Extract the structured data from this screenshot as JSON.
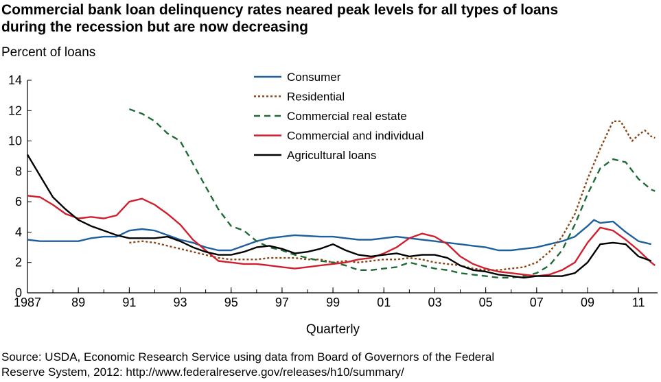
{
  "title": {
    "line1": "Commercial bank loan delinquency rates neared peak levels for all types of loans",
    "line2": "during the recession but are now decreasing"
  },
  "source": {
    "line1": "Source: USDA, Economic Research Service using data from Board of Governors of the Federal",
    "line2": "Reserve System, 2012:  http://www.federalreserve.gov/releases/h10/summary/"
  },
  "chart_data": {
    "type": "line",
    "title": "Commercial bank loan delinquency rates neared peak levels for all types of loans during the recession but are now decreasing",
    "xlabel": "Quarterly",
    "ylabel": "Percent of loans",
    "ylim": [
      0,
      14
    ],
    "xlim": [
      1987,
      2011.75
    ],
    "yticks": [
      0,
      2,
      4,
      6,
      8,
      10,
      12,
      14
    ],
    "xticks": [
      {
        "value": 1987,
        "label": "1987"
      },
      {
        "value": 1989,
        "label": "89"
      },
      {
        "value": 1991,
        "label": "91"
      },
      {
        "value": 1993,
        "label": "93"
      },
      {
        "value": 1995,
        "label": "95"
      },
      {
        "value": 1997,
        "label": "97"
      },
      {
        "value": 1999,
        "label": "99"
      },
      {
        "value": 2001,
        "label": "01"
      },
      {
        "value": 2003,
        "label": "03"
      },
      {
        "value": 2005,
        "label": "05"
      },
      {
        "value": 2007,
        "label": "07"
      },
      {
        "value": 2009,
        "label": "09"
      },
      {
        "value": 2011,
        "label": "11"
      }
    ],
    "grid": false,
    "legend_position": "top-center",
    "series": [
      {
        "name": "Consumer",
        "color": "#1f5f9c",
        "dash": "solid",
        "points": [
          [
            1987,
            3.5
          ],
          [
            1987.5,
            3.4
          ],
          [
            1988,
            3.4
          ],
          [
            1988.5,
            3.4
          ],
          [
            1989,
            3.4
          ],
          [
            1989.5,
            3.6
          ],
          [
            1990,
            3.7
          ],
          [
            1990.5,
            3.7
          ],
          [
            1991,
            4.1
          ],
          [
            1991.5,
            4.2
          ],
          [
            1992,
            4.1
          ],
          [
            1992.5,
            3.8
          ],
          [
            1993,
            3.5
          ],
          [
            1993.5,
            3.3
          ],
          [
            1994,
            3.0
          ],
          [
            1994.5,
            2.8
          ],
          [
            1995,
            2.8
          ],
          [
            1995.5,
            3.1
          ],
          [
            1996,
            3.4
          ],
          [
            1996.5,
            3.6
          ],
          [
            1997,
            3.7
          ],
          [
            1997.5,
            3.8
          ],
          [
            1998,
            3.75
          ],
          [
            1998.5,
            3.7
          ],
          [
            1999,
            3.7
          ],
          [
            1999.5,
            3.6
          ],
          [
            2000,
            3.5
          ],
          [
            2000.5,
            3.5
          ],
          [
            2001,
            3.6
          ],
          [
            2001.5,
            3.7
          ],
          [
            2002,
            3.6
          ],
          [
            2002.5,
            3.5
          ],
          [
            2003,
            3.4
          ],
          [
            2003.5,
            3.3
          ],
          [
            2004,
            3.2
          ],
          [
            2004.5,
            3.1
          ],
          [
            2005,
            3.0
          ],
          [
            2005.5,
            2.8
          ],
          [
            2006,
            2.8
          ],
          [
            2006.5,
            2.9
          ],
          [
            2007,
            3.0
          ],
          [
            2007.5,
            3.2
          ],
          [
            2008,
            3.4
          ],
          [
            2008.5,
            3.7
          ],
          [
            2009,
            4.4
          ],
          [
            2009.25,
            4.8
          ],
          [
            2009.5,
            4.6
          ],
          [
            2010,
            4.7
          ],
          [
            2010.5,
            4.0
          ],
          [
            2011,
            3.4
          ],
          [
            2011.5,
            3.2
          ]
        ]
      },
      {
        "name": "Residential",
        "color": "#8b4513",
        "dash": "dotted",
        "points": [
          [
            1991,
            3.3
          ],
          [
            1991.5,
            3.4
          ],
          [
            1992,
            3.3
          ],
          [
            1992.5,
            3.1
          ],
          [
            1993,
            2.9
          ],
          [
            1993.5,
            2.7
          ],
          [
            1994,
            2.5
          ],
          [
            1994.5,
            2.3
          ],
          [
            1995,
            2.2
          ],
          [
            1995.5,
            2.2
          ],
          [
            1996,
            2.2
          ],
          [
            1996.5,
            2.3
          ],
          [
            1997,
            2.3
          ],
          [
            1997.5,
            2.3
          ],
          [
            1998,
            2.2
          ],
          [
            1998.5,
            2.2
          ],
          [
            1999,
            2.0
          ],
          [
            1999.5,
            2.1
          ],
          [
            2000,
            2.0
          ],
          [
            2000.5,
            2.1
          ],
          [
            2001,
            2.2
          ],
          [
            2001.5,
            2.2
          ],
          [
            2002,
            2.3
          ],
          [
            2002.5,
            2.2
          ],
          [
            2003,
            2.0
          ],
          [
            2003.5,
            1.9
          ],
          [
            2004,
            1.8
          ],
          [
            2004.5,
            1.6
          ],
          [
            2005,
            1.5
          ],
          [
            2005.5,
            1.5
          ],
          [
            2006,
            1.6
          ],
          [
            2006.5,
            1.7
          ],
          [
            2007,
            2.0
          ],
          [
            2007.5,
            2.7
          ],
          [
            2008,
            3.7
          ],
          [
            2008.5,
            5.2
          ],
          [
            2009,
            7.5
          ],
          [
            2009.5,
            9.5
          ],
          [
            2010,
            11.3
          ],
          [
            2010.3,
            11.3
          ],
          [
            2010.75,
            10.0
          ],
          [
            2011,
            10.4
          ],
          [
            2011.25,
            10.7
          ],
          [
            2011.5,
            10.3
          ],
          [
            2011.65,
            10.2
          ]
        ]
      },
      {
        "name": "Commercial real estate",
        "color": "#1f6b35",
        "dash": "dashed",
        "points": [
          [
            1991,
            12.1
          ],
          [
            1991.5,
            11.8
          ],
          [
            1992,
            11.3
          ],
          [
            1992.5,
            10.5
          ],
          [
            1993,
            10.0
          ],
          [
            1993.5,
            8.5
          ],
          [
            1994,
            7.0
          ],
          [
            1994.5,
            5.5
          ],
          [
            1995,
            4.4
          ],
          [
            1995.5,
            4.1
          ],
          [
            1996,
            3.4
          ],
          [
            1996.5,
            3.0
          ],
          [
            1997,
            2.8
          ],
          [
            1997.5,
            2.5
          ],
          [
            1998,
            2.3
          ],
          [
            1998.5,
            2.1
          ],
          [
            1999,
            2.0
          ],
          [
            1999.5,
            1.8
          ],
          [
            2000,
            1.5
          ],
          [
            2000.5,
            1.5
          ],
          [
            2001,
            1.6
          ],
          [
            2001.5,
            1.7
          ],
          [
            2002,
            2.0
          ],
          [
            2002.5,
            1.8
          ],
          [
            2003,
            1.6
          ],
          [
            2003.5,
            1.5
          ],
          [
            2004,
            1.3
          ],
          [
            2004.5,
            1.2
          ],
          [
            2005,
            1.1
          ],
          [
            2005.5,
            1.0
          ],
          [
            2006,
            1.0
          ],
          [
            2006.5,
            1.1
          ],
          [
            2007,
            1.3
          ],
          [
            2007.5,
            1.8
          ],
          [
            2008,
            2.8
          ],
          [
            2008.5,
            4.5
          ],
          [
            2009,
            6.5
          ],
          [
            2009.5,
            8.2
          ],
          [
            2010,
            8.8
          ],
          [
            2010.5,
            8.6
          ],
          [
            2011,
            7.5
          ],
          [
            2011.5,
            6.8
          ],
          [
            2011.65,
            6.7
          ]
        ]
      },
      {
        "name": "Commercial and individual",
        "color": "#d01f2e",
        "dash": "solid",
        "points": [
          [
            1987,
            6.4
          ],
          [
            1987.5,
            6.3
          ],
          [
            1988,
            5.8
          ],
          [
            1988.5,
            5.2
          ],
          [
            1989,
            4.9
          ],
          [
            1989.5,
            5.0
          ],
          [
            1990,
            4.9
          ],
          [
            1990.5,
            5.1
          ],
          [
            1991,
            6.0
          ],
          [
            1991.5,
            6.2
          ],
          [
            1992,
            5.8
          ],
          [
            1992.5,
            5.2
          ],
          [
            1993,
            4.5
          ],
          [
            1993.5,
            3.5
          ],
          [
            1994,
            2.8
          ],
          [
            1994.5,
            2.1
          ],
          [
            1995,
            2.0
          ],
          [
            1995.5,
            1.9
          ],
          [
            1996,
            1.9
          ],
          [
            1996.5,
            1.8
          ],
          [
            1997,
            1.7
          ],
          [
            1997.5,
            1.6
          ],
          [
            1998,
            1.7
          ],
          [
            1998.5,
            1.8
          ],
          [
            1999,
            1.9
          ],
          [
            1999.5,
            2.0
          ],
          [
            2000,
            2.2
          ],
          [
            2000.5,
            2.3
          ],
          [
            2001,
            2.6
          ],
          [
            2001.5,
            3.0
          ],
          [
            2002,
            3.6
          ],
          [
            2002.5,
            3.9
          ],
          [
            2003,
            3.7
          ],
          [
            2003.5,
            3.2
          ],
          [
            2004,
            2.4
          ],
          [
            2004.5,
            1.9
          ],
          [
            2005,
            1.6
          ],
          [
            2005.5,
            1.4
          ],
          [
            2006,
            1.3
          ],
          [
            2006.5,
            1.2
          ],
          [
            2007,
            1.1
          ],
          [
            2007.5,
            1.2
          ],
          [
            2008,
            1.5
          ],
          [
            2008.5,
            2.0
          ],
          [
            2009,
            3.3
          ],
          [
            2009.5,
            4.3
          ],
          [
            2010,
            4.1
          ],
          [
            2010.5,
            3.5
          ],
          [
            2011,
            2.8
          ],
          [
            2011.5,
            2.0
          ],
          [
            2011.65,
            1.8
          ]
        ]
      },
      {
        "name": "Agricultural loans",
        "color": "#000000",
        "dash": "solid",
        "points": [
          [
            1987,
            9.1
          ],
          [
            1987.5,
            7.7
          ],
          [
            1988,
            6.3
          ],
          [
            1988.5,
            5.5
          ],
          [
            1989,
            4.8
          ],
          [
            1989.5,
            4.4
          ],
          [
            1990,
            4.1
          ],
          [
            1990.5,
            3.8
          ],
          [
            1991,
            3.6
          ],
          [
            1991.5,
            3.6
          ],
          [
            1992,
            3.6
          ],
          [
            1992.5,
            3.7
          ],
          [
            1993,
            3.4
          ],
          [
            1993.5,
            3.0
          ],
          [
            1994,
            2.7
          ],
          [
            1994.5,
            2.5
          ],
          [
            1995,
            2.5
          ],
          [
            1995.5,
            2.7
          ],
          [
            1996,
            3.0
          ],
          [
            1996.5,
            3.1
          ],
          [
            1997,
            2.9
          ],
          [
            1997.5,
            2.6
          ],
          [
            1998,
            2.7
          ],
          [
            1998.5,
            2.9
          ],
          [
            1999,
            3.2
          ],
          [
            1999.5,
            2.8
          ],
          [
            2000,
            2.5
          ],
          [
            2000.5,
            2.4
          ],
          [
            2001,
            2.5
          ],
          [
            2001.5,
            2.6
          ],
          [
            2002,
            2.4
          ],
          [
            2002.5,
            2.5
          ],
          [
            2003,
            2.5
          ],
          [
            2003.5,
            2.3
          ],
          [
            2004,
            1.8
          ],
          [
            2004.5,
            1.5
          ],
          [
            2005,
            1.4
          ],
          [
            2005.5,
            1.2
          ],
          [
            2006,
            1.1
          ],
          [
            2006.5,
            1.0
          ],
          [
            2007,
            1.1
          ],
          [
            2007.5,
            1.1
          ],
          [
            2008,
            1.1
          ],
          [
            2008.5,
            1.3
          ],
          [
            2009,
            2.0
          ],
          [
            2009.5,
            3.2
          ],
          [
            2010,
            3.3
          ],
          [
            2010.5,
            3.2
          ],
          [
            2011,
            2.4
          ],
          [
            2011.5,
            2.1
          ]
        ]
      }
    ]
  }
}
